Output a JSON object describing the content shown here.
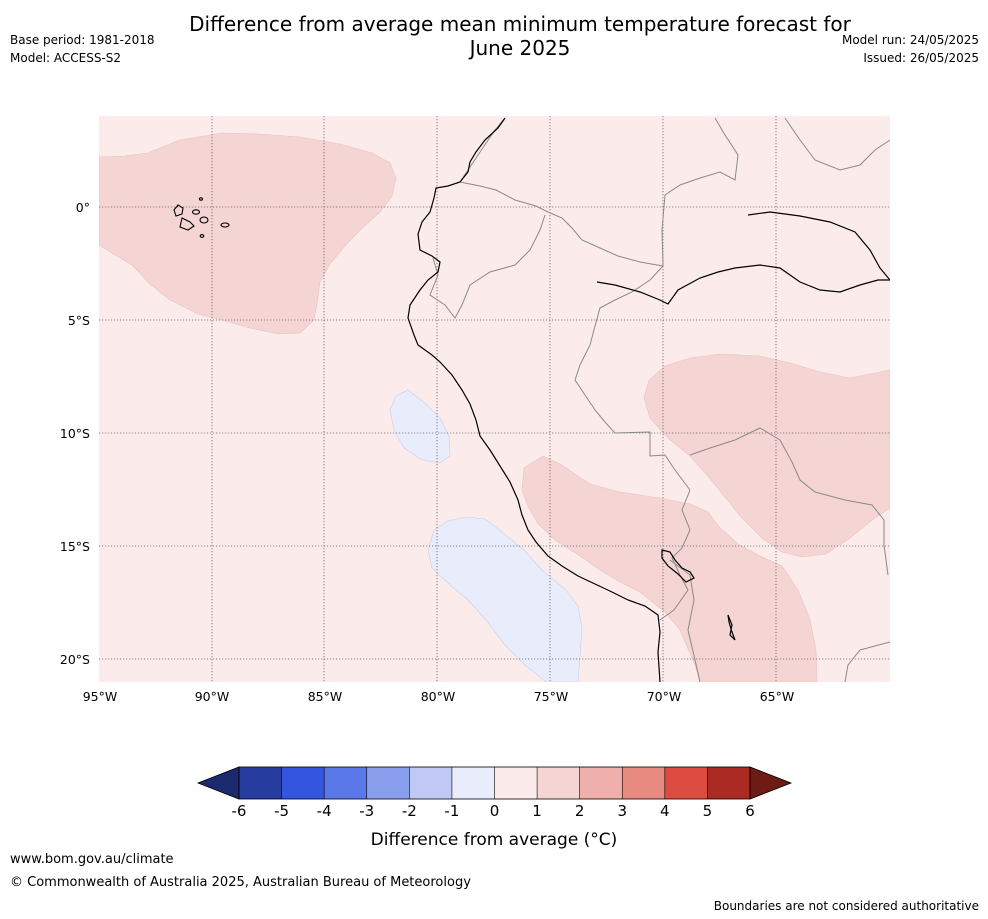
{
  "title_line1": "Difference from average mean minimum temperature forecast for",
  "title_line2": "June 2025",
  "base_period": "Base period: 1981-2018",
  "model": "Model: ACCESS-S2",
  "model_run": "Model run: 24/05/2025",
  "issued": "Issued: 26/05/2025",
  "lat_labels": [
    "0°",
    "5°S",
    "10°S",
    "15°S",
    "20°S"
  ],
  "lon_labels": [
    "95°W",
    "90°W",
    "85°W",
    "80°W",
    "75°W",
    "70°W",
    "65°W"
  ],
  "colorbar": {
    "label": "Difference from average (°C)",
    "ticks": [
      "-6",
      "-5",
      "-4",
      "-3",
      "-2",
      "-1",
      "0",
      "1",
      "2",
      "3",
      "4",
      "5",
      "6"
    ],
    "colors": [
      "#263c9e",
      "#3355e0",
      "#5b78e8",
      "#8a9eee",
      "#c0c9f5",
      "#e8ecfb",
      "#fbeceb",
      "#f5d5d4",
      "#efafac",
      "#e88a80",
      "#dc4c40",
      "#ab2a22"
    ],
    "under_color": "#1b2a6e",
    "over_color": "#6e1a15"
  },
  "website": "www.bom.gov.au/climate",
  "copyright": "© Commonwealth of Australia 2025, Australian Bureau of Meteorology",
  "disclaimer": "Boundaries are not considered authoritative"
}
